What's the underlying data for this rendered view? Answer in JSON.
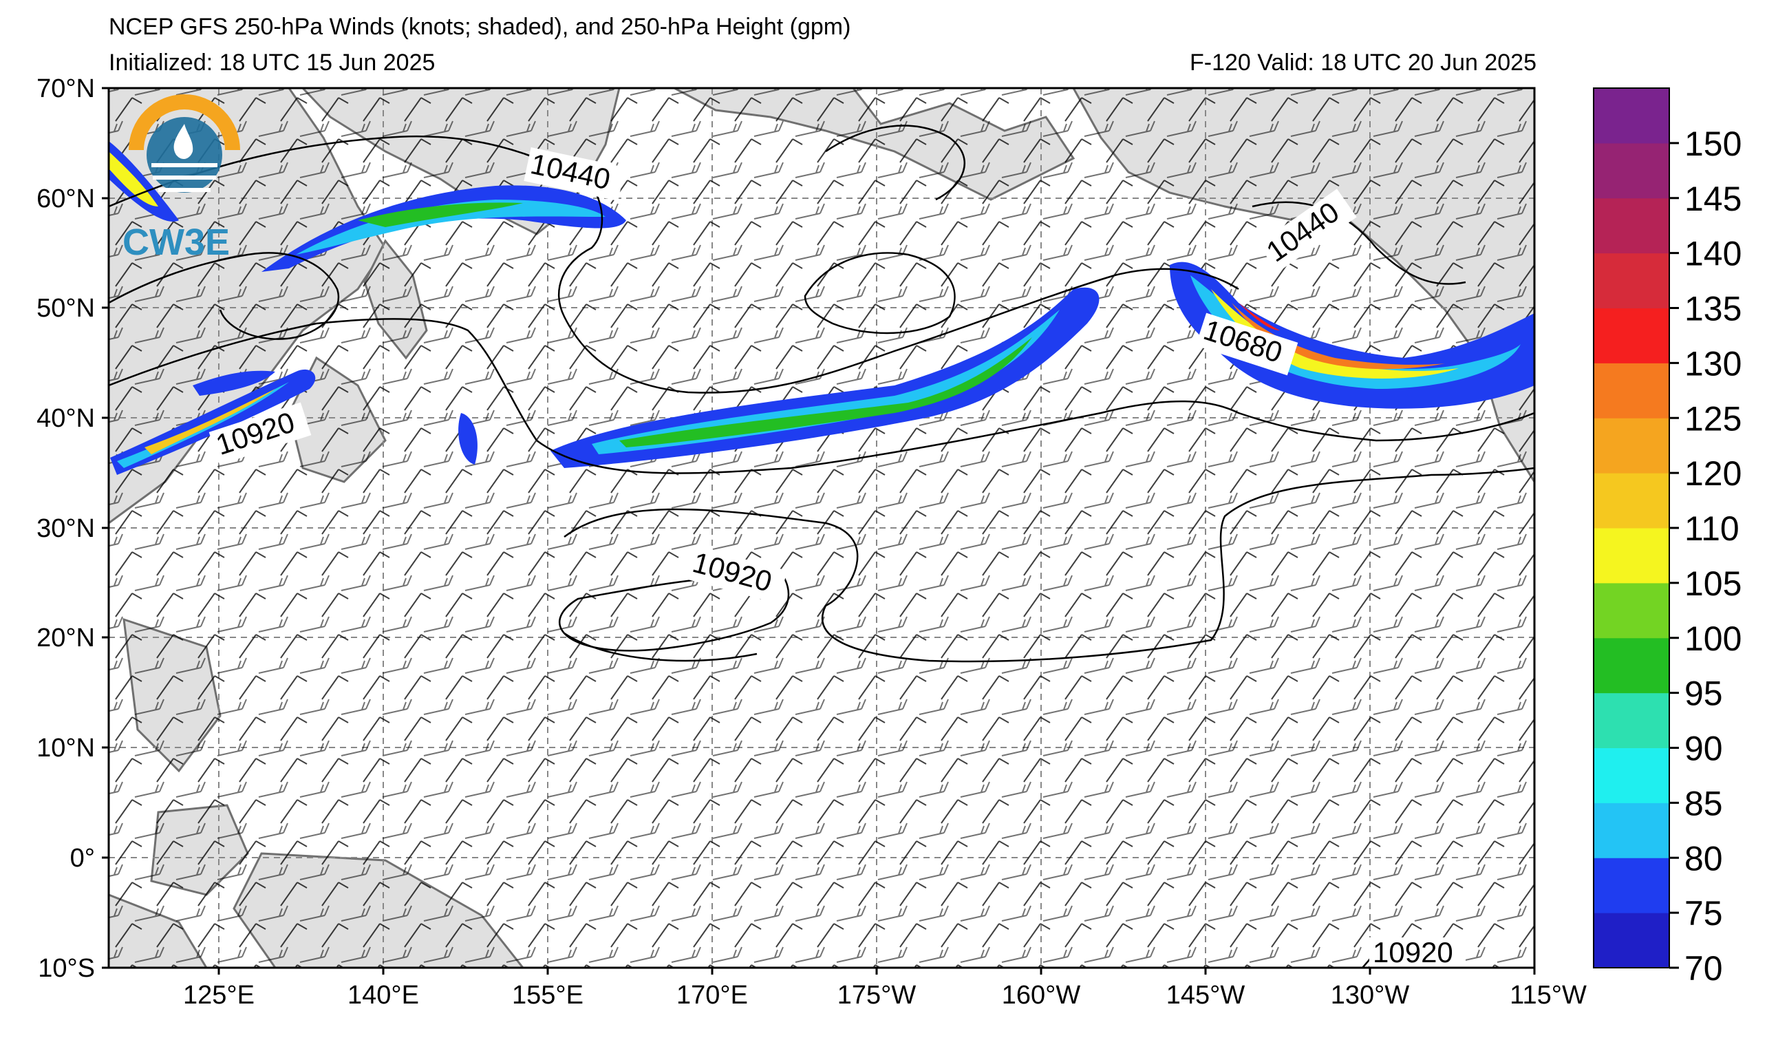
{
  "header": {
    "title": "NCEP GFS 250-hPa Winds (knots; shaded), and 250-hPa Height (gpm)",
    "initialized": "Initialized: 18 UTC 15 Jun 2025",
    "valid": "F-120  Valid: 18 UTC 20 Jun 2025"
  },
  "logo": {
    "text": "CW3E"
  },
  "axes": {
    "lat_labels": [
      "70°N",
      "60°N",
      "50°N",
      "40°N",
      "30°N",
      "20°N",
      "10°N",
      "0°",
      "10°S"
    ],
    "lon_labels": [
      "125°E",
      "140°E",
      "155°E",
      "170°E",
      "175°W",
      "160°W",
      "145°W",
      "130°W",
      "115°W"
    ]
  },
  "contour_labels": [
    {
      "text": "10440"
    },
    {
      "text": "10440"
    },
    {
      "text": "10680"
    },
    {
      "text": "10920"
    },
    {
      "text": "10920"
    },
    {
      "text": "10920"
    }
  ],
  "colorbar": {
    "ticks": [
      "70",
      "75",
      "80",
      "85",
      "90",
      "95",
      "100",
      "105",
      "110",
      "120",
      "125",
      "130",
      "135",
      "140",
      "145",
      "150"
    ],
    "colors": [
      "#1f1fc7",
      "#1f3df0",
      "#23c4f5",
      "#1fefef",
      "#2de0b0",
      "#23be23",
      "#73d423",
      "#f5f51f",
      "#f5c81f",
      "#f5a51f",
      "#f57a1f",
      "#f51f1f",
      "#d62b3a",
      "#b52356",
      "#962373",
      "#7a238e"
    ]
  },
  "land_color": "#e0e0e0",
  "coast_color": "#707070"
}
